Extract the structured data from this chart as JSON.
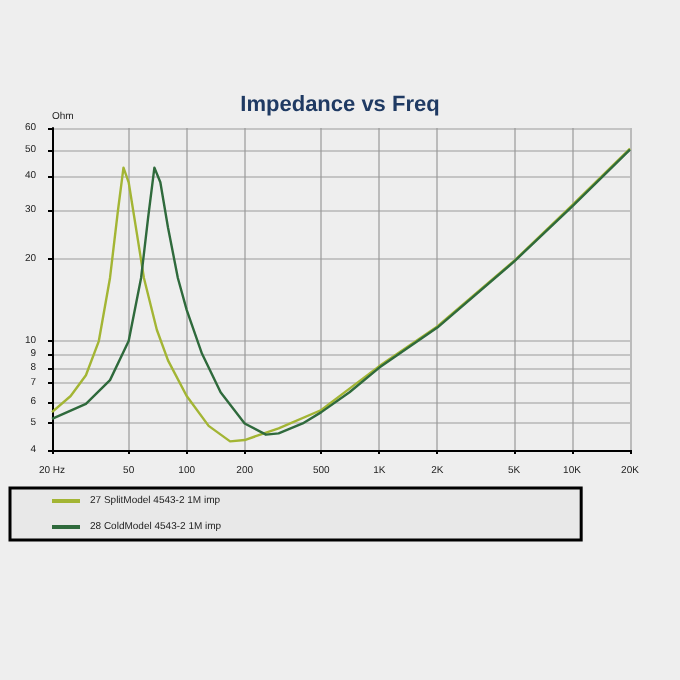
{
  "chart_data": {
    "type": "line",
    "title": "Impedance vs Freq",
    "ylabel": "Ohm",
    "log": "xy",
    "grid": true,
    "legend": "bottom",
    "marker": "none",
    "line_style": "solid",
    "xlim": [
      20,
      20000
    ],
    "xticks": [
      {
        "value": 20,
        "label": "20 Hz"
      },
      50,
      100,
      200,
      500,
      {
        "value": 1000,
        "label": "1K"
      },
      {
        "value": 2000,
        "label": "2K"
      },
      {
        "value": 5000,
        "label": "5K"
      },
      {
        "value": 10000,
        "label": "10K"
      },
      {
        "value": 20000,
        "label": "20K"
      }
    ],
    "ylim": [
      4,
      60
    ],
    "yticks": [
      4,
      5,
      6,
      7,
      8,
      9,
      10,
      20,
      30,
      40,
      50,
      60
    ],
    "series": [
      {
        "name": "27 SplitModel 4543-2 1M imp",
        "color": "#a3b534",
        "x": [
          20,
          25,
          30,
          35,
          40,
          44,
          47,
          50,
          55,
          60,
          70,
          80,
          100,
          130,
          168,
          200,
          300,
          500,
          700,
          1000,
          2000,
          5000,
          10000,
          20000
        ],
        "values": [
          5.5,
          6.3,
          7.5,
          10,
          17,
          30,
          43,
          38,
          25,
          17,
          11,
          8.5,
          6.3,
          4.9,
          4.3,
          4.35,
          4.8,
          5.6,
          6.7,
          8.1,
          11.3,
          19.6,
          31.3,
          50.5
        ]
      },
      {
        "name": "28 ColdModel 4543-2 1M imp",
        "color": "#2f6a3c",
        "x": [
          20,
          30,
          40,
          50,
          58,
          63,
          68,
          73,
          80,
          90,
          100,
          120,
          150,
          200,
          258,
          300,
          400,
          500,
          700,
          1000,
          2000,
          5000,
          10000,
          20000
        ],
        "values": [
          5.2,
          5.9,
          7.2,
          10,
          17,
          28,
          43,
          38,
          26,
          17,
          13,
          9,
          6.5,
          5,
          4.55,
          4.6,
          5,
          5.5,
          6.5,
          8,
          11.2,
          19.5,
          31,
          50
        ]
      }
    ]
  }
}
